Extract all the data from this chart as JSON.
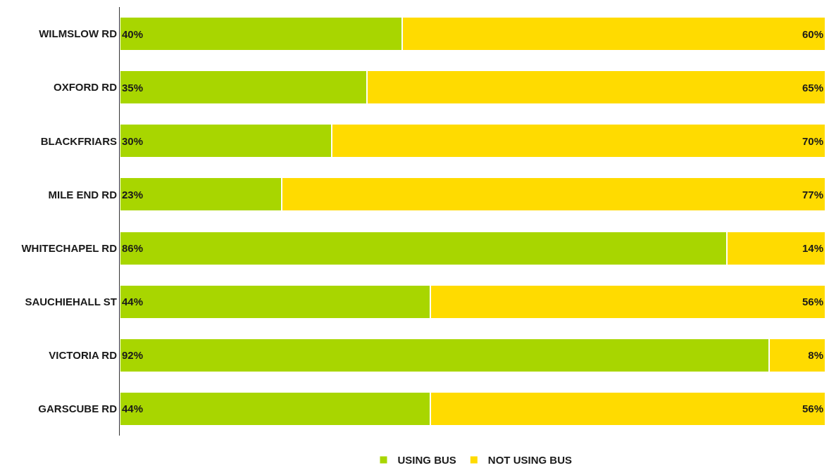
{
  "chart_data": {
    "type": "bar",
    "orientation": "horizontal",
    "stacked": true,
    "legend": "bottom",
    "categories": [
      "WILMSLOW RD",
      "OXFORD RD",
      "BLACKFRIARS",
      "MILE END RD",
      "WHITECHAPEL RD",
      "SAUCHIEHALL ST",
      "VICTORIA RD",
      "GARSCUBE RD"
    ],
    "series": [
      {
        "name": "USING BUS",
        "color": "#a8d600",
        "values": [
          40,
          35,
          30,
          23,
          86,
          44,
          92,
          44
        ],
        "value_labels": [
          "40%",
          "35%",
          "30%",
          "23%",
          "86%",
          "44%",
          "92%",
          "44%"
        ]
      },
      {
        "name": "NOT USING BUS",
        "color": "#ffdb00",
        "values": [
          60,
          65,
          70,
          77,
          14,
          56,
          8,
          56
        ],
        "value_labels": [
          "60%",
          "65%",
          "70%",
          "77%",
          "14%",
          "56%",
          "8%",
          "56%"
        ]
      }
    ]
  }
}
